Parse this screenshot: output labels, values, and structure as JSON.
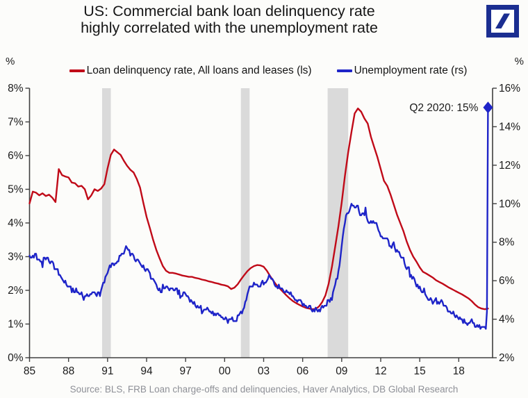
{
  "header": {
    "title_line1": "US: Commercial bank loan delinquency rate",
    "title_line2": "highly correlated with the unemployment rate",
    "logo_color": "#1B2E91"
  },
  "axes": {
    "left_unit": "%",
    "right_unit": "%"
  },
  "source_text": "Source: BLS, FRB Loan charge-offs and delinquencies, Haver Analytics, DB Global  Research",
  "chart_data": {
    "type": "line",
    "title": "US: Commercial bank loan delinquency rate highly correlated with the unemployment rate",
    "x_range": [
      1985,
      2020.6
    ],
    "grid": false,
    "legend_position": "top",
    "band_color": "#DADADA",
    "axis_color": "#3F3F3F",
    "left_axis": {
      "label": "%",
      "min": 0,
      "max": 8,
      "ticks": [
        {
          "v": 0,
          "t": "0%"
        },
        {
          "v": 1,
          "t": "1%"
        },
        {
          "v": 2,
          "t": "2%"
        },
        {
          "v": 3,
          "t": "3%"
        },
        {
          "v": 4,
          "t": "4%"
        },
        {
          "v": 5,
          "t": "5%"
        },
        {
          "v": 6,
          "t": "6%"
        },
        {
          "v": 7,
          "t": "7%"
        },
        {
          "v": 8,
          "t": "8%"
        }
      ]
    },
    "right_axis": {
      "label": "%",
      "min": 2,
      "max": 16,
      "ticks": [
        {
          "v": 2,
          "t": "2%"
        },
        {
          "v": 4,
          "t": "4%"
        },
        {
          "v": 6,
          "t": "6%"
        },
        {
          "v": 8,
          "t": "8%"
        },
        {
          "v": 10,
          "t": "10%"
        },
        {
          "v": 12,
          "t": "12%"
        },
        {
          "v": 14,
          "t": "14%"
        },
        {
          "v": 16,
          "t": "16%"
        }
      ]
    },
    "x_ticks": [
      {
        "v": 1985,
        "t": "85"
      },
      {
        "v": 1988,
        "t": "88"
      },
      {
        "v": 1991,
        "t": "91"
      },
      {
        "v": 1994,
        "t": "94"
      },
      {
        "v": 1997,
        "t": "97"
      },
      {
        "v": 2000,
        "t": "00"
      },
      {
        "v": 2003,
        "t": "03"
      },
      {
        "v": 2006,
        "t": "06"
      },
      {
        "v": 2009,
        "t": "09"
      },
      {
        "v": 2012,
        "t": "12"
      },
      {
        "v": 2015,
        "t": "15"
      },
      {
        "v": 2018,
        "t": "18"
      }
    ],
    "recession_bands": [
      [
        1990.58,
        1991.25
      ],
      [
        2001.25,
        2001.92
      ],
      [
        2007.92,
        2009.5
      ]
    ],
    "series": [
      {
        "name": "Loan delinquency rate, All loans and leases (ls)",
        "data_name": "loan-delinquency-line",
        "color": "#C00A18",
        "axis": "left",
        "x_start": 1985.0,
        "x_step": 0.25,
        "values": [
          4.58,
          4.93,
          4.9,
          4.82,
          4.88,
          4.8,
          4.84,
          4.75,
          4.62,
          5.6,
          5.42,
          5.38,
          5.35,
          5.2,
          5.18,
          5.08,
          5.1,
          5.0,
          4.7,
          4.82,
          5.0,
          4.95,
          5.02,
          5.15,
          5.62,
          6.02,
          6.18,
          6.1,
          6.02,
          5.85,
          5.7,
          5.58,
          5.5,
          5.3,
          5.05,
          4.6,
          4.18,
          3.85,
          3.5,
          3.2,
          2.95,
          2.72,
          2.58,
          2.52,
          2.52,
          2.5,
          2.47,
          2.44,
          2.42,
          2.4,
          2.4,
          2.37,
          2.35,
          2.32,
          2.3,
          2.27,
          2.25,
          2.22,
          2.2,
          2.17,
          2.15,
          2.12,
          2.04,
          2.08,
          2.18,
          2.32,
          2.45,
          2.57,
          2.66,
          2.72,
          2.75,
          2.74,
          2.7,
          2.58,
          2.42,
          2.28,
          2.15,
          2.05,
          1.95,
          1.85,
          1.76,
          1.68,
          1.62,
          1.57,
          1.52,
          1.48,
          1.46,
          1.44,
          1.45,
          1.52,
          1.65,
          1.85,
          2.2,
          2.7,
          3.3,
          3.9,
          4.6,
          5.4,
          6.1,
          6.7,
          7.25,
          7.4,
          7.3,
          7.1,
          6.95,
          6.55,
          6.25,
          5.95,
          5.6,
          5.25,
          5.1,
          4.85,
          4.55,
          4.25,
          4.0,
          3.75,
          3.45,
          3.2,
          3.0,
          2.85,
          2.68,
          2.55,
          2.5,
          2.44,
          2.38,
          2.3,
          2.25,
          2.2,
          2.14,
          2.08,
          2.03,
          1.98,
          1.93,
          1.88,
          1.82,
          1.76,
          1.68,
          1.58,
          1.5,
          1.46,
          1.44,
          1.46
        ]
      },
      {
        "name": "Unemployment rate (rs)",
        "data_name": "unemployment-line",
        "color": "#1E24C8",
        "axis": "right",
        "x_start": 1985.0,
        "x_step": 0.0833333,
        "values": [
          7.3,
          7.2,
          7.2,
          7.3,
          7.2,
          7.4,
          7.4,
          7.1,
          7.1,
          7.1,
          7.0,
          7.0,
          6.7,
          7.2,
          7.2,
          7.1,
          7.2,
          7.2,
          7.0,
          6.9,
          7.0,
          7.0,
          6.9,
          6.6,
          6.6,
          6.6,
          6.6,
          6.3,
          6.3,
          6.2,
          6.1,
          6.0,
          5.9,
          6.0,
          5.8,
          5.7,
          5.7,
          5.7,
          5.7,
          5.4,
          5.6,
          5.4,
          5.4,
          5.6,
          5.4,
          5.4,
          5.3,
          5.3,
          5.4,
          5.2,
          5.0,
          5.2,
          5.2,
          5.3,
          5.2,
          5.2,
          5.3,
          5.3,
          5.4,
          5.4,
          5.4,
          5.3,
          5.2,
          5.4,
          5.4,
          5.2,
          5.5,
          5.7,
          5.9,
          5.9,
          6.2,
          6.3,
          6.4,
          6.6,
          6.8,
          6.7,
          6.9,
          6.9,
          6.8,
          6.9,
          6.9,
          7.0,
          7.0,
          7.3,
          7.3,
          7.4,
          7.4,
          7.4,
          7.6,
          7.8,
          7.7,
          7.6,
          7.6,
          7.3,
          7.4,
          7.4,
          7.3,
          7.1,
          7.0,
          7.1,
          7.1,
          7.0,
          6.9,
          6.8,
          6.7,
          6.8,
          6.6,
          6.5,
          6.6,
          6.6,
          6.5,
          6.4,
          6.1,
          6.1,
          6.1,
          6.0,
          5.9,
          5.8,
          5.6,
          5.5,
          5.6,
          5.4,
          5.4,
          5.8,
          5.6,
          5.6,
          5.7,
          5.7,
          5.6,
          5.5,
          5.6,
          5.6,
          5.6,
          5.5,
          5.5,
          5.6,
          5.6,
          5.3,
          5.5,
          5.1,
          5.2,
          5.2,
          5.4,
          5.4,
          5.3,
          5.2,
          5.2,
          5.1,
          4.9,
          5.0,
          4.9,
          4.8,
          4.9,
          4.7,
          4.6,
          4.7,
          4.6,
          4.6,
          4.7,
          4.3,
          4.4,
          4.5,
          4.5,
          4.5,
          4.6,
          4.5,
          4.4,
          4.4,
          4.3,
          4.4,
          4.2,
          4.3,
          4.2,
          4.3,
          4.3,
          4.2,
          4.2,
          4.1,
          4.1,
          4.0,
          4.0,
          4.1,
          4.0,
          3.8,
          4.0,
          4.0,
          4.0,
          4.1,
          3.9,
          3.9,
          3.9,
          3.9,
          4.2,
          4.2,
          4.3,
          4.4,
          4.3,
          4.5,
          4.6,
          4.9,
          5.0,
          5.3,
          5.5,
          5.7,
          5.7,
          5.7,
          5.7,
          5.9,
          5.8,
          5.8,
          5.8,
          5.7,
          5.7,
          5.7,
          5.9,
          6.0,
          5.8,
          5.9,
          5.9,
          6.0,
          6.1,
          6.3,
          6.2,
          6.1,
          6.1,
          6.0,
          5.8,
          5.7,
          5.7,
          5.6,
          5.8,
          5.6,
          5.6,
          5.6,
          5.5,
          5.4,
          5.4,
          5.5,
          5.4,
          5.4,
          5.3,
          5.4,
          5.2,
          5.2,
          5.1,
          5.0,
          5.0,
          4.9,
          5.0,
          5.0,
          5.0,
          4.9,
          4.7,
          4.8,
          4.7,
          4.7,
          4.6,
          4.6,
          4.7,
          4.7,
          4.5,
          4.4,
          4.5,
          4.4,
          4.6,
          4.5,
          4.4,
          4.5,
          4.4,
          4.6,
          4.7,
          4.6,
          4.7,
          4.7,
          4.7,
          5.0,
          5.0,
          4.9,
          5.1,
          5.0,
          5.4,
          5.6,
          5.8,
          6.1,
          6.1,
          6.5,
          6.8,
          7.3,
          7.8,
          8.3,
          8.7,
          9.0,
          9.4,
          9.5,
          9.5,
          9.6,
          9.8,
          10.0,
          9.9,
          9.9,
          9.8,
          9.8,
          9.9,
          9.9,
          9.6,
          9.4,
          9.4,
          9.5,
          9.5,
          9.4,
          9.8,
          9.3,
          9.1,
          9.0,
          9.0,
          9.1,
          9.0,
          9.1,
          9.0,
          9.0,
          9.0,
          8.8,
          8.6,
          8.5,
          8.3,
          8.3,
          8.2,
          8.2,
          8.2,
          8.2,
          8.2,
          8.1,
          7.8,
          7.8,
          7.7,
          7.9,
          8.0,
          7.7,
          7.5,
          7.6,
          7.5,
          7.5,
          7.3,
          7.2,
          7.2,
          7.2,
          6.9,
          6.7,
          6.6,
          6.7,
          6.7,
          6.2,
          6.3,
          6.1,
          6.2,
          6.1,
          5.9,
          5.7,
          5.8,
          5.6,
          5.7,
          5.5,
          5.4,
          5.4,
          5.6,
          5.3,
          5.2,
          5.1,
          5.0,
          5.0,
          5.1,
          5.0,
          4.8,
          4.9,
          5.0,
          5.1,
          4.8,
          4.9,
          4.8,
          4.9,
          5.0,
          4.9,
          4.7,
          4.7,
          4.7,
          4.6,
          4.4,
          4.4,
          4.4,
          4.3,
          4.3,
          4.4,
          4.2,
          4.1,
          4.2,
          4.1,
          4.0,
          4.1,
          4.0,
          4.0,
          3.8,
          4.0,
          3.8,
          3.8,
          3.7,
          3.8,
          3.8,
          3.9,
          4.0,
          3.8,
          3.8,
          3.6,
          3.6,
          3.7,
          3.6,
          3.7,
          3.5,
          3.6,
          3.6,
          3.6,
          3.6,
          3.5,
          4.4,
          15.0
        ]
      }
    ],
    "annotation": {
      "text": "Q2 2020: 15%",
      "x": 2020.25,
      "value": 15,
      "axis": "right",
      "marker": "diamond",
      "color": "#1E24C8"
    }
  }
}
